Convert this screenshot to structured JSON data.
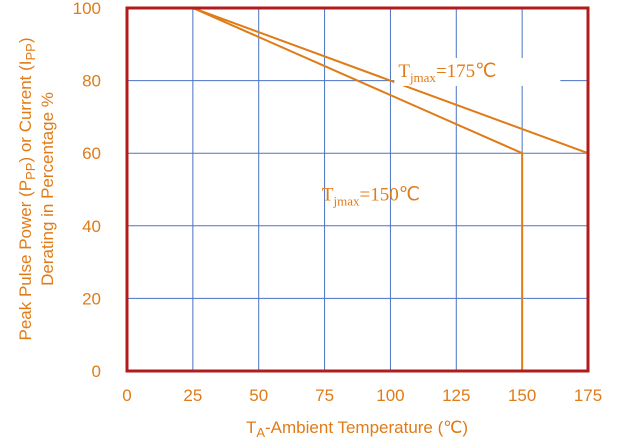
{
  "chart_data": {
    "type": "line",
    "xlabel_main": "T",
    "xlabel_sub": "A",
    "xlabel_rest": "-Ambient Temperature (℃)",
    "ylabel_line1_a": "Peak Pulse Power (P",
    "ylabel_line1_sub1": "PP",
    "ylabel_line1_b": ") or Current (I",
    "ylabel_line1_sub2": "PP",
    "ylabel_line1_c": ")",
    "ylabel_line2": "Derating in Percentage %",
    "xlim": [
      0,
      175
    ],
    "ylim": [
      0,
      100
    ],
    "x_ticks": [
      0,
      25,
      50,
      75,
      100,
      125,
      150,
      175
    ],
    "y_ticks": [
      0,
      20,
      40,
      60,
      80,
      100
    ],
    "grid": true,
    "colors": {
      "line": "#e07b17",
      "grid": "#4a73c4",
      "frame": "#b01c1c",
      "text": "#e07b17"
    },
    "series": [
      {
        "name": "Tjmax=175℃",
        "points": [
          [
            0,
            100
          ],
          [
            25,
            100
          ],
          [
            175,
            60
          ]
        ]
      },
      {
        "name": "Tjmax=150℃",
        "points": [
          [
            0,
            100
          ],
          [
            25,
            100
          ],
          [
            150,
            60
          ],
          [
            150,
            0
          ]
        ]
      }
    ],
    "annotations": [
      {
        "main": "T",
        "sub": "jmax",
        "rest": "=175℃",
        "x": 103,
        "y": 81
      },
      {
        "main": "T",
        "sub": "jmax",
        "rest": "=150℃",
        "x": 74,
        "y": 47
      }
    ]
  }
}
